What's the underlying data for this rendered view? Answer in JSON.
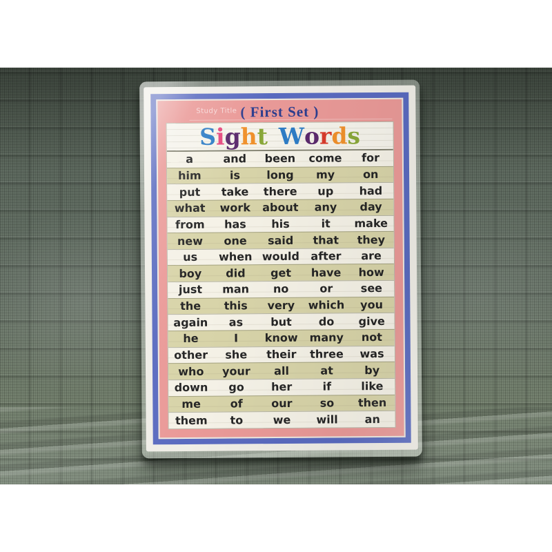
{
  "poster": {
    "study_title_label": "Study Title",
    "set_label": "( First Set )",
    "title": {
      "text": "Sight Words",
      "letters": [
        {
          "ch": "S",
          "color": "#2e7dc6"
        },
        {
          "ch": "i",
          "color": "#e6487f"
        },
        {
          "ch": "g",
          "color": "#5b2a6d"
        },
        {
          "ch": "h",
          "color": "#f0912c"
        },
        {
          "ch": "t",
          "color": "#8aa839"
        },
        {
          "ch": "W",
          "color": "#2e7dc6"
        },
        {
          "ch": "o",
          "color": "#5b2a6d"
        },
        {
          "ch": "r",
          "color": "#d93b2c"
        },
        {
          "ch": "d",
          "color": "#f0912c"
        },
        {
          "ch": "s",
          "color": "#8aa839"
        }
      ]
    },
    "words": {
      "rows": [
        [
          "a",
          "and",
          "been",
          "come",
          "for"
        ],
        [
          "him",
          "is",
          "long",
          "my",
          "on"
        ],
        [
          "put",
          "take",
          "there",
          "up",
          "had"
        ],
        [
          "what",
          "work",
          "about",
          "any",
          "day"
        ],
        [
          "from",
          "has",
          "his",
          "it",
          "make"
        ],
        [
          "new",
          "one",
          "said",
          "that",
          "they"
        ],
        [
          "us",
          "when",
          "would",
          "after",
          "are"
        ],
        [
          "boy",
          "did",
          "get",
          "have",
          "how"
        ],
        [
          "just",
          "man",
          "no",
          "or",
          "see"
        ],
        [
          "the",
          "this",
          "very",
          "which",
          "you"
        ],
        [
          "again",
          "as",
          "but",
          "do",
          "give"
        ],
        [
          "he",
          "I",
          "know",
          "many",
          "not"
        ],
        [
          "other",
          "she",
          "their",
          "three",
          "was"
        ],
        [
          "who",
          "your",
          "all",
          "at",
          "by"
        ],
        [
          "down",
          "go",
          "her",
          "if",
          "like"
        ],
        [
          "me",
          "of",
          "our",
          "so",
          "then"
        ],
        [
          "them",
          "to",
          "we",
          "will",
          "an"
        ]
      ]
    },
    "colors": {
      "pink": "#ea9a98",
      "blue_border": "#5a6bc0",
      "khaki_stripe": "#d8d4a9",
      "panel": "#f6f4ec",
      "set_label_color": "#2c3e8f",
      "word_color": "#262626"
    }
  }
}
